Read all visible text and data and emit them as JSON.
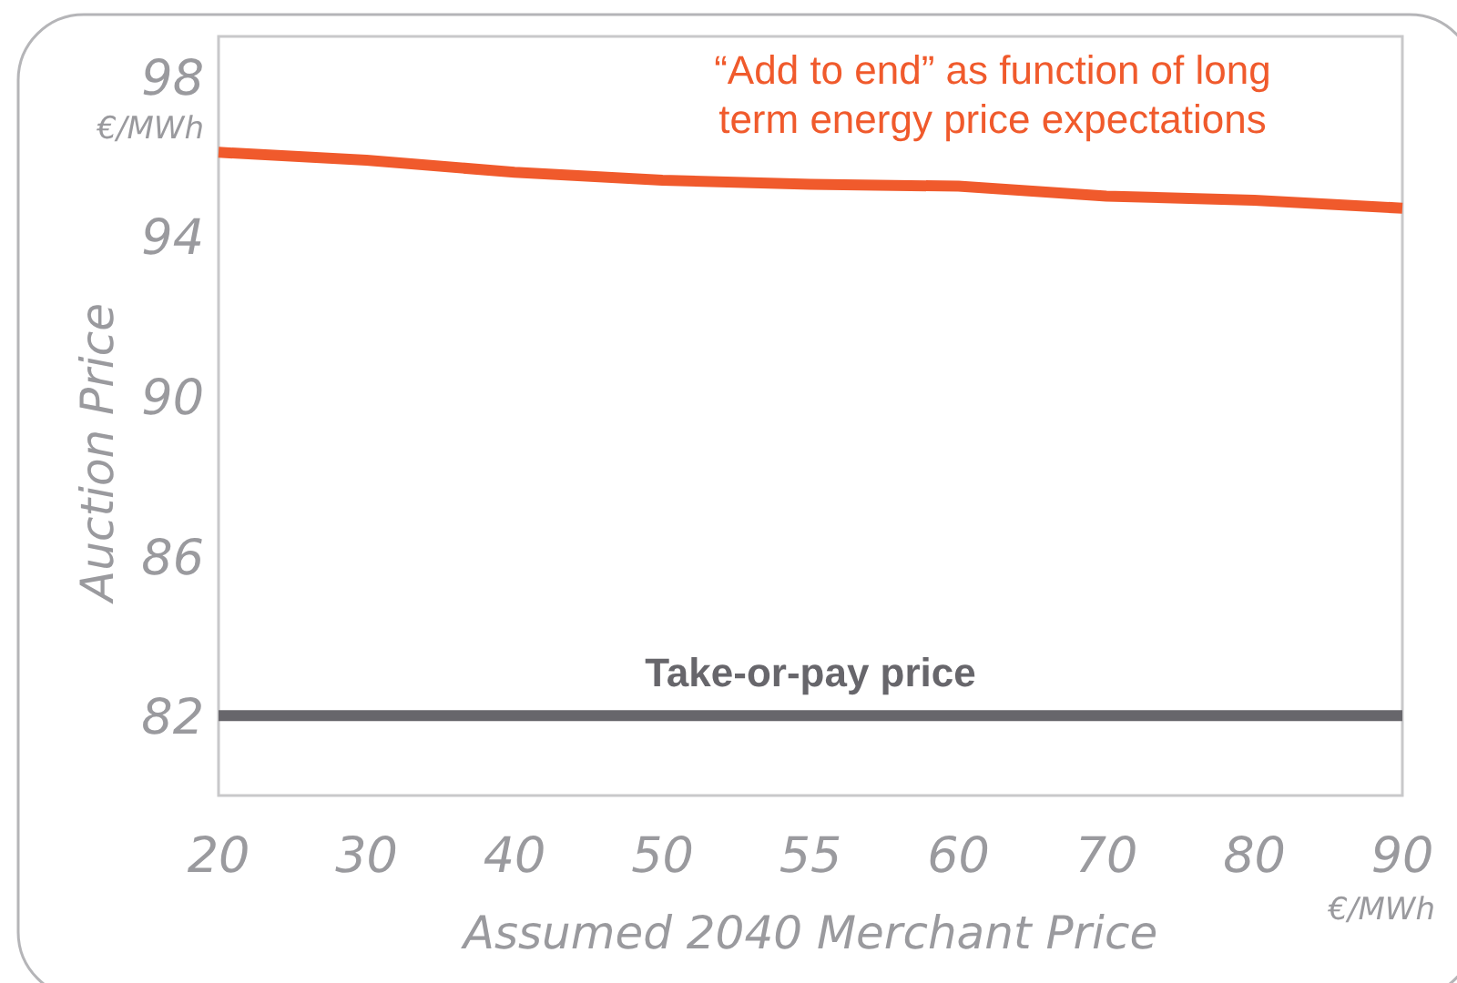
{
  "chart_data": {
    "type": "line",
    "xlabel": "Assumed 2040 Merchant Price",
    "ylabel": "Auction Price",
    "categories": [
      "20",
      "30",
      "40",
      "50",
      "55",
      "60",
      "70",
      "80",
      "90"
    ],
    "series": [
      {
        "name": "“Add to end” as function of long term energy price expectations",
        "color": "#f05a2c",
        "values": [
          96.1,
          95.9,
          95.6,
          95.4,
          95.3,
          95.25,
          95.0,
          94.9,
          94.7
        ]
      },
      {
        "name": "Take-or-pay price",
        "color": "#67666b",
        "values": [
          82,
          82,
          82,
          82,
          82,
          82,
          82,
          82,
          82
        ]
      }
    ],
    "ylim": [
      80,
      99
    ],
    "yticks": [
      82,
      86,
      90,
      94,
      98
    ],
    "grid": false,
    "marker": "none",
    "line_style": "solid",
    "annotations": [
      "€/MWh",
      "€/MWh"
    ]
  }
}
